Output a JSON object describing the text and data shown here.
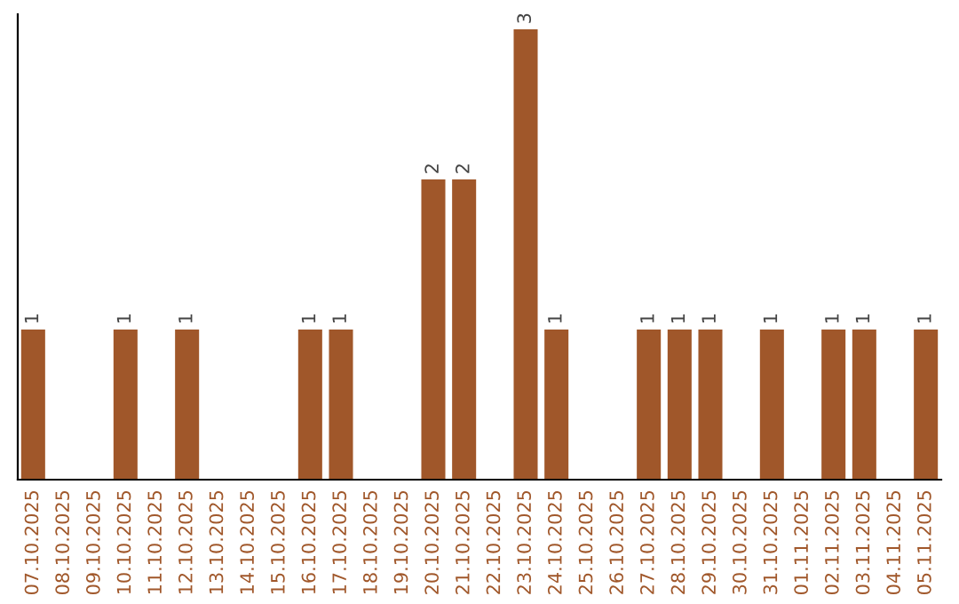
{
  "chart_data": {
    "type": "bar",
    "categories": [
      "07.10.2025",
      "08.10.2025",
      "09.10.2025",
      "10.10.2025",
      "11.10.2025",
      "12.10.2025",
      "13.10.2025",
      "14.10.2025",
      "15.10.2025",
      "16.10.2025",
      "17.10.2025",
      "18.10.2025",
      "19.10.2025",
      "20.10.2025",
      "21.10.2025",
      "22.10.2025",
      "23.10.2025",
      "24.10.2025",
      "25.10.2025",
      "26.10.2025",
      "27.10.2025",
      "28.10.2025",
      "29.10.2025",
      "30.10.2025",
      "31.10.2025",
      "01.11.2025",
      "02.11.2025",
      "03.11.2025",
      "04.11.2025",
      "05.11.2025"
    ],
    "values": [
      1,
      0,
      0,
      1,
      0,
      1,
      0,
      0,
      0,
      1,
      1,
      0,
      0,
      2,
      2,
      0,
      3,
      1,
      0,
      0,
      1,
      1,
      1,
      0,
      1,
      0,
      1,
      1,
      0,
      1
    ],
    "value_labels": [
      "1",
      null,
      null,
      "1",
      null,
      "1",
      null,
      null,
      null,
      "1",
      "1",
      null,
      null,
      "2",
      "2",
      null,
      "3",
      "1",
      null,
      null,
      "1",
      "1",
      "1",
      null,
      "1",
      null,
      "1",
      "1",
      null,
      "1"
    ],
    "color": "#a0572a",
    "ylim": [
      0,
      3.1
    ],
    "grid": false,
    "legend": false
  }
}
